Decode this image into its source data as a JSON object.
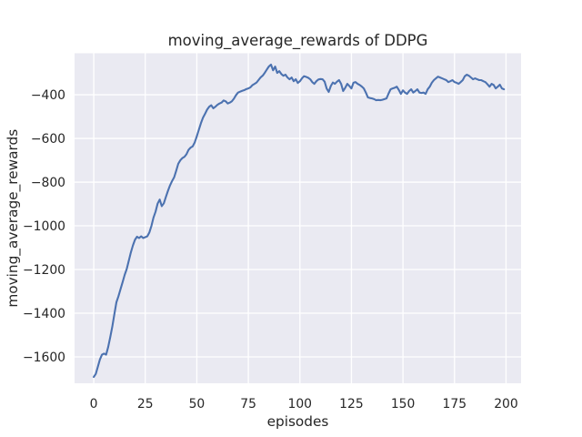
{
  "chart_data": {
    "type": "line",
    "title": "moving_average_rewards of DDPG",
    "xlabel": "episodes",
    "ylabel": "moving_average_rewards",
    "style": "seaborn-darkgrid",
    "grid": true,
    "legend": "none",
    "xlim": [
      -9.3,
      207.3
    ],
    "ylim": [
      -1721,
      -210
    ],
    "x_ticks": {
      "values": [
        0,
        25,
        50,
        75,
        100,
        125,
        150,
        175,
        200
      ],
      "labels": [
        "0",
        "25",
        "50",
        "75",
        "100",
        "125",
        "150",
        "175",
        "200"
      ]
    },
    "y_ticks": {
      "values": [
        -400,
        -600,
        -800,
        -1000,
        -1200,
        -1400,
        -1600
      ],
      "labels": [
        "−400",
        "−600",
        "−800",
        "−1000",
        "−1200",
        "−1400",
        "−1600"
      ]
    },
    "colors": {
      "line": "#4c72b0",
      "plot_background": "#eaeaf2",
      "grid": "#ffffff",
      "text": "#262626",
      "figure_background": "#ffffff"
    },
    "series": [
      {
        "name": "moving_average_rewards",
        "x_start": 0,
        "x_step": 1,
        "values": [
          -1692,
          -1678,
          -1645,
          -1612,
          -1590,
          -1585,
          -1590,
          -1555,
          -1510,
          -1462,
          -1405,
          -1350,
          -1322,
          -1290,
          -1258,
          -1225,
          -1198,
          -1160,
          -1122,
          -1090,
          -1064,
          -1050,
          -1056,
          -1048,
          -1056,
          -1052,
          -1048,
          -1030,
          -1000,
          -962,
          -935,
          -898,
          -880,
          -910,
          -897,
          -868,
          -840,
          -815,
          -795,
          -778,
          -748,
          -716,
          -700,
          -690,
          -684,
          -672,
          -652,
          -642,
          -636,
          -618,
          -590,
          -560,
          -530,
          -505,
          -487,
          -468,
          -455,
          -448,
          -462,
          -455,
          -446,
          -440,
          -436,
          -426,
          -430,
          -440,
          -436,
          -430,
          -418,
          -402,
          -390,
          -386,
          -382,
          -379,
          -374,
          -371,
          -366,
          -356,
          -350,
          -344,
          -332,
          -320,
          -312,
          -299,
          -284,
          -270,
          -262,
          -288,
          -271,
          -300,
          -292,
          -305,
          -313,
          -308,
          -321,
          -329,
          -321,
          -338,
          -329,
          -346,
          -338,
          -325,
          -315,
          -318,
          -322,
          -329,
          -342,
          -350,
          -338,
          -330,
          -328,
          -329,
          -340,
          -372,
          -387,
          -360,
          -344,
          -350,
          -340,
          -333,
          -350,
          -383,
          -368,
          -350,
          -360,
          -371,
          -345,
          -342,
          -350,
          -355,
          -362,
          -371,
          -390,
          -412,
          -415,
          -417,
          -420,
          -425,
          -424,
          -425,
          -423,
          -420,
          -417,
          -395,
          -375,
          -371,
          -368,
          -363,
          -378,
          -396,
          -380,
          -390,
          -396,
          -383,
          -375,
          -390,
          -383,
          -375,
          -390,
          -392,
          -390,
          -396,
          -375,
          -363,
          -345,
          -333,
          -325,
          -317,
          -321,
          -325,
          -329,
          -333,
          -342,
          -338,
          -333,
          -342,
          -345,
          -350,
          -342,
          -333,
          -315,
          -308,
          -313,
          -321,
          -329,
          -325,
          -329,
          -333,
          -333,
          -338,
          -342,
          -352,
          -363,
          -350,
          -355,
          -371,
          -363,
          -354,
          -371,
          -375
        ]
      }
    ]
  }
}
